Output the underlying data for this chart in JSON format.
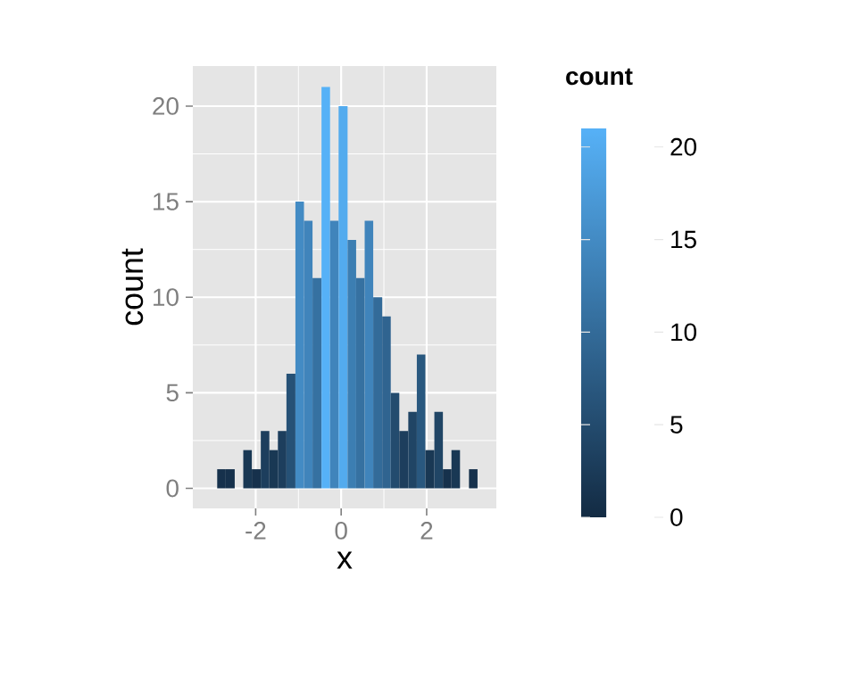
{
  "chart_data": {
    "type": "histogram",
    "xlabel": "x",
    "ylabel": "count",
    "clabel": "count",
    "bins": [
      -2.9,
      -2.7,
      -2.49,
      -2.29,
      -2.09,
      -1.88,
      -1.68,
      -1.48,
      -1.28,
      -1.07,
      -0.87,
      -0.67,
      -0.46,
      -0.26,
      -0.06,
      0.15,
      0.35,
      0.55,
      0.75,
      0.96,
      1.16,
      1.36,
      1.57,
      1.77,
      1.97,
      2.18,
      2.38,
      2.58,
      2.78,
      2.99,
      3.19
    ],
    "values": [
      1,
      1,
      0,
      2,
      1,
      3,
      2,
      3,
      6,
      15,
      14,
      11,
      21,
      14,
      20,
      13,
      11,
      14,
      10,
      9,
      5,
      3,
      4,
      7,
      2,
      4,
      1,
      2,
      0,
      1
    ],
    "colors": [
      "#16314C",
      "#16314C",
      "#132B43",
      "#193854",
      "#16314C",
      "#1D3E5D",
      "#193854",
      "#1D3E5D",
      "#265176",
      "#438BC4",
      "#4084BB",
      "#3671A1",
      "#56B1F7",
      "#4084BB",
      "#53ABEE",
      "#3C7EB2",
      "#3671A1",
      "#4084BB",
      "#336B99",
      "#306490",
      "#234B6E",
      "#1D3E5D",
      "#204565",
      "#29587F",
      "#193854",
      "#204565",
      "#16314C",
      "#193854",
      "#132B43",
      "#16314C"
    ],
    "xlim": [
      -3.47,
      3.63
    ],
    "ylim": [
      -1.05,
      22.1
    ],
    "xticks": [
      -2,
      0,
      2
    ],
    "yticks": [
      0,
      5,
      10,
      15,
      20
    ],
    "clim": [
      0,
      21
    ],
    "cticks": [
      0,
      5,
      10,
      15,
      20
    ],
    "grid": true
  }
}
